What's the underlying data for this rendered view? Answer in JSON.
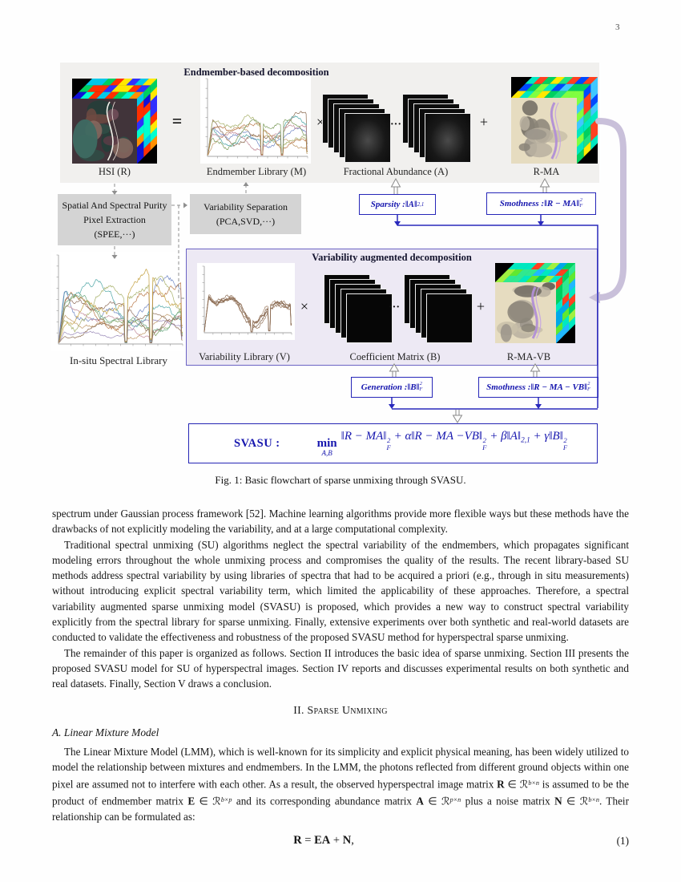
{
  "page": {
    "number": "3"
  },
  "figure": {
    "top": {
      "title": "Endmember-based decomposition",
      "eq": "=",
      "times": "×",
      "dots": "···",
      "plus": "+",
      "labels": {
        "hsi": "HSI (R)",
        "lib": "Endmember Library (M)",
        "ab": "Fractional Abundance (A)",
        "rma": "R-MA"
      }
    },
    "boxes": {
      "spee": [
        "Spatial And Spectral Purity",
        "Pixel Extraction",
        "(SPEE,···)"
      ],
      "vs": [
        "Variability Separation",
        "(PCA,SVD,···)"
      ]
    },
    "insitu_label": "In-situ Spectral Library",
    "constraints": {
      "sparsity": [
        {
          "t": "Sparsity : ",
          "s": "bi"
        },
        {
          "t": "‖A‖",
          "s": "bi"
        },
        {
          "t": "2,1",
          "s": "sub"
        }
      ],
      "smothness1": [
        {
          "t": "Smothness : ",
          "s": "bi"
        },
        {
          "t": "‖R − MA‖",
          "s": "bi"
        },
        {
          "t": "2|F",
          "s": "ss"
        }
      ],
      "generation": [
        {
          "t": "Generation : ",
          "s": "bi"
        },
        {
          "t": "‖B‖",
          "s": "bi"
        },
        {
          "t": "2|F",
          "s": "ss"
        }
      ],
      "smothness2": [
        {
          "t": "Smothness : ",
          "s": "bi"
        },
        {
          "t": "‖R − MA − VB‖",
          "s": "bi"
        },
        {
          "t": "2|F",
          "s": "ss"
        }
      ]
    },
    "bottom": {
      "title": "Variability augmented decomposition",
      "times": "×",
      "dots": "···",
      "plus": "+",
      "labels": {
        "vlib": "Variability Library (V)",
        "coef": "Coefficient Matrix (B)",
        "rmavb": "R-MA-VB"
      }
    },
    "svasu": {
      "label": "SVASU :",
      "formula": [
        {
          "t": "min|A,B",
          "s": "stk"
        },
        {
          "t": "‖R − MA‖",
          "s": "i"
        },
        {
          "t": "2|F",
          "s": "ss"
        },
        {
          "t": " + α",
          "s": "i"
        },
        {
          "t": "‖R − MA −VB‖",
          "s": "i"
        },
        {
          "t": "2|F",
          "s": "ss"
        },
        {
          "t": " + β",
          "s": "i"
        },
        {
          "t": "‖A‖",
          "s": "i"
        },
        {
          "t": "2,1",
          "s": "sub"
        },
        {
          "t": " + γ",
          "s": "i"
        },
        {
          "t": "‖B‖",
          "s": "i"
        },
        {
          "t": "2|F",
          "s": "ss"
        }
      ]
    },
    "caption": "Fig. 1: Basic flowchart of sparse unmixing through SVASU.",
    "art": {
      "blue": "#2626b8",
      "gray_panel": "#f1f0ee",
      "purple_panel": "#ede9f4",
      "process_gray": "#d4d4d4",
      "arrow_purple": "#c9c0da",
      "dashed_gray": "#8f8f8f",
      "plots": {
        "endmember": {
          "seed": 7,
          "cluster": false,
          "colors": [
            "#c09a6a",
            "#8a6a50",
            "#4ea6a6",
            "#6f86c4",
            "#a7b06a",
            "#c08896",
            "#7a9a58",
            "#b87848"
          ]
        },
        "insitu": {
          "seed": 11,
          "cluster": false,
          "colors": [
            "#c09a6a",
            "#8a6a50",
            "#4ea6a6",
            "#6f86c4",
            "#a7b06a",
            "#c08896",
            "#7a9a58",
            "#b87848",
            "#9a8ab8",
            "#6aa880",
            "#c4a040",
            "#907060"
          ]
        },
        "variability": {
          "seed": 23,
          "cluster": true,
          "colors": [
            "#8a6a52",
            "#96765c",
            "#7e6048",
            "#a08066",
            "#8a6a52"
          ]
        }
      },
      "cubes": {
        "hsi": {
          "seed": 3,
          "front_base": "#41343a",
          "front_blobs": [
            "#5c3c46",
            "#6e4a42",
            "#2f4f46",
            "#74505c",
            "#233f3a",
            "#8a6a60"
          ],
          "faces": [
            "#1010d8",
            "#00c8e8",
            "#ffe800",
            "#ff3000",
            "#00d060",
            "#ff9000",
            "#3030ff",
            "#00ffd0"
          ]
        },
        "rma": {
          "seed": 5,
          "front_base": "#e6dcc0",
          "front_blobs": [
            "#b8b0a0",
            "#8a8478",
            "#5a564e",
            "#c8c0a8",
            "#9a948a",
            "#6e6a60"
          ],
          "faces": [
            "#00d060",
            "#00e8c0",
            "#40c8ff",
            "#ffe800",
            "#ff4020",
            "#0048ff",
            "#20e080",
            "#80ff40"
          ]
        },
        "rmavb": {
          "seed": 9,
          "front_base": "#e6dcc0",
          "front_blobs": [
            "#b8b0a0",
            "#8a8478",
            "#5a564e",
            "#c8c0a8",
            "#9a948a",
            "#6e6a60"
          ],
          "faces": [
            "#00d060",
            "#00e8c0",
            "#20b8ff",
            "#60e830",
            "#ff4020",
            "#00a8e8",
            "#30e890",
            "#a0f040"
          ]
        }
      }
    }
  },
  "body": {
    "para1": "spectrum under Gaussian process framework [52]. Machine learning algorithms provide more flexible ways but these methods have the drawbacks of not explicitly modeling the variability, and at a large computational complexity.",
    "para2": "Traditional spectral unmixing (SU) algorithms neglect the spectral variability of the endmembers, which propagates significant modeling errors throughout the whole unmixing process and compromises the quality of the results. The recent library-based SU methods address spectral variability by using libraries of spectra that had to be acquired a priori (e.g., through in situ measurements) without introducing explicit spectral variability term, which limited the applicability of these approaches. Therefore, a spectral variability augmented sparse unmixing model (SVASU) is proposed, which provides a new way to construct spectral variability explicitly from the spectral library for sparse unmixing. Finally, extensive experiments over both synthetic and real-world datasets are conducted to validate the effectiveness and robustness of the proposed SVASU method for hyperspectral sparse unmixing.",
    "para3": "The remainder of this paper is organized as follows. Section II introduces the basic idea of sparse unmixing. Section III presents the proposed SVASU model for SU of hyperspectral images. Section IV reports and discusses experimental results on both synthetic and real datasets. Finally, Section V draws a conclusion.",
    "heading": "II. Sparse Unmixing",
    "subsection": "A. Linear Mixture Model",
    "para4": [
      {
        "t": "The Linear Mixture Model (LMM), which is well-known for its simplicity and explicit physical meaning, has been widely utilized to model the relationship between mixtures and endmembers. In the LMM, the photons reflected from different ground objects within one pixel are assumed not to interfere with each other. As a result, the observed hyperspectral image matrix "
      },
      {
        "t": "R",
        "s": "b"
      },
      {
        "t": " ∈ ℛ"
      },
      {
        "t": "b×n",
        "s": "supi"
      },
      {
        "t": " is assumed to be the product of endmember matrix "
      },
      {
        "t": "E",
        "s": "b"
      },
      {
        "t": " ∈ ℛ"
      },
      {
        "t": "b×p",
        "s": "supi"
      },
      {
        "t": " and its corresponding abundance matrix "
      },
      {
        "t": "A",
        "s": "b"
      },
      {
        "t": " ∈ ℛ"
      },
      {
        "t": "p×n",
        "s": "supi"
      },
      {
        "t": " plus a noise matrix "
      },
      {
        "t": "N",
        "s": "b"
      },
      {
        "t": " ∈ ℛ"
      },
      {
        "t": "b×n",
        "s": "supi"
      },
      {
        "t": ". Their relationship can be formulated as:"
      }
    ],
    "equation": [
      {
        "t": "R",
        "s": "b"
      },
      {
        "t": " = "
      },
      {
        "t": "EA",
        "s": "b"
      },
      {
        "t": " + "
      },
      {
        "t": "N",
        "s": "b"
      },
      {
        "t": ","
      }
    ],
    "equation_number": "(1)"
  }
}
